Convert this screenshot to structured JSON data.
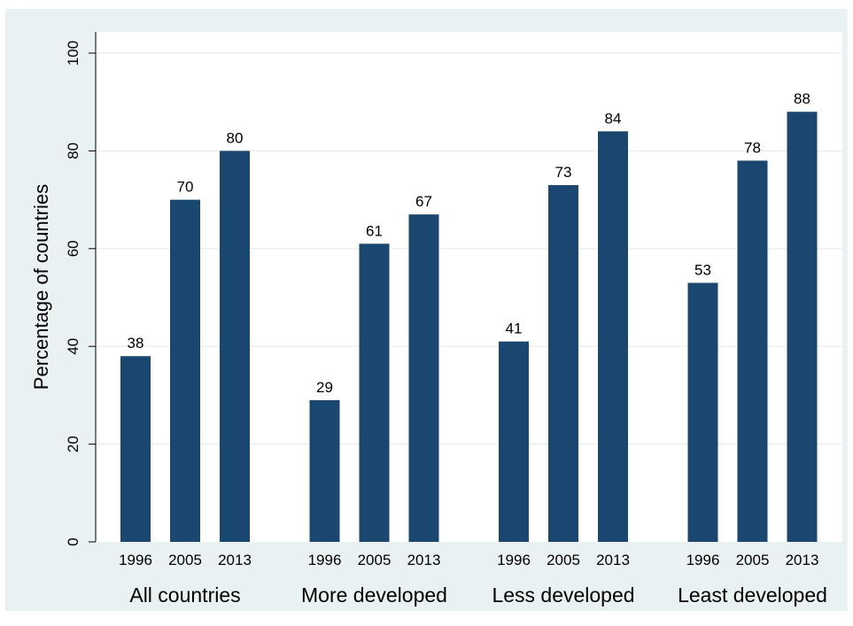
{
  "chart_data": {
    "type": "bar",
    "ylabel": "Percentage of countries",
    "xlabel": "",
    "title": "",
    "ylim": [
      0,
      100
    ],
    "yticks": [
      0,
      20,
      40,
      60,
      80,
      100
    ],
    "grid": true,
    "bar_color": "#1a476f",
    "background": "#eaf1f3",
    "groups": [
      {
        "label": "All countries",
        "bars": [
          {
            "year": "1996",
            "value": 38
          },
          {
            "year": "2005",
            "value": 70
          },
          {
            "year": "2013",
            "value": 80
          }
        ]
      },
      {
        "label": "More developed",
        "bars": [
          {
            "year": "1996",
            "value": 29
          },
          {
            "year": "2005",
            "value": 61
          },
          {
            "year": "2013",
            "value": 67
          }
        ]
      },
      {
        "label": "Less developed",
        "bars": [
          {
            "year": "1996",
            "value": 41
          },
          {
            "year": "2005",
            "value": 73
          },
          {
            "year": "2013",
            "value": 84
          }
        ]
      },
      {
        "label": "Least developed",
        "bars": [
          {
            "year": "1996",
            "value": 53
          },
          {
            "year": "2005",
            "value": 78
          },
          {
            "year": "2013",
            "value": 88
          }
        ]
      }
    ]
  }
}
